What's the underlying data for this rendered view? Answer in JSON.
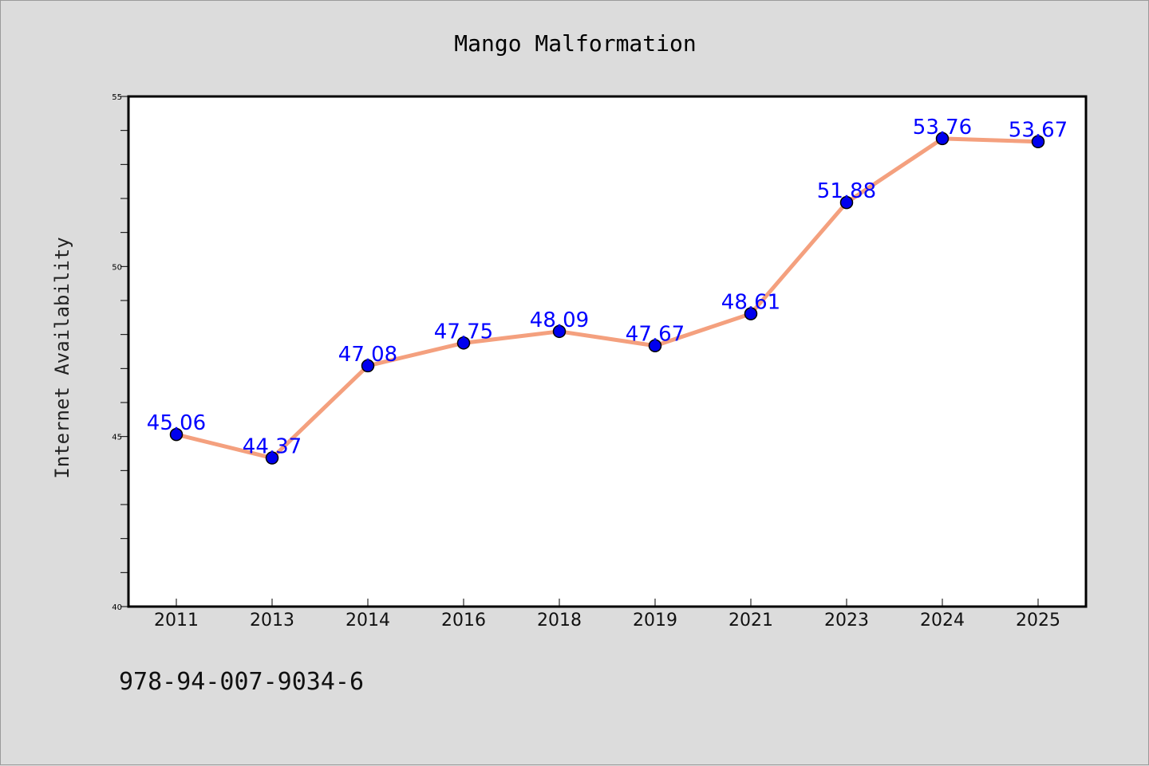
{
  "chart_data": {
    "type": "line",
    "title": "Mango Malformation",
    "xlabel": "",
    "ylabel": "Internet Availability",
    "categories": [
      "2011",
      "2013",
      "2014",
      "2016",
      "2018",
      "2019",
      "2021",
      "2023",
      "2024",
      "2025"
    ],
    "series": [
      {
        "values": [
          45.06,
          44.37,
          47.08,
          47.75,
          48.09,
          47.67,
          48.61,
          51.88,
          53.76,
          53.67
        ],
        "data_labels": [
          "45.06",
          "44.37",
          "47.08",
          "47.75",
          "48.09",
          "47.67",
          "48.61",
          "51.88",
          "53.76",
          "53.67"
        ]
      }
    ],
    "ylim": [
      40,
      55
    ],
    "yticks": [
      "40",
      "45",
      "50",
      "55"
    ],
    "grid": false,
    "legend": "none",
    "colors": {
      "line": "#f4a07e",
      "marker": "#0000ee",
      "label": "#0000ff",
      "background": "#dcdcdc",
      "plot_background": "#ffffff"
    }
  },
  "footer": {
    "isbn": "978-94-007-9034-6"
  }
}
